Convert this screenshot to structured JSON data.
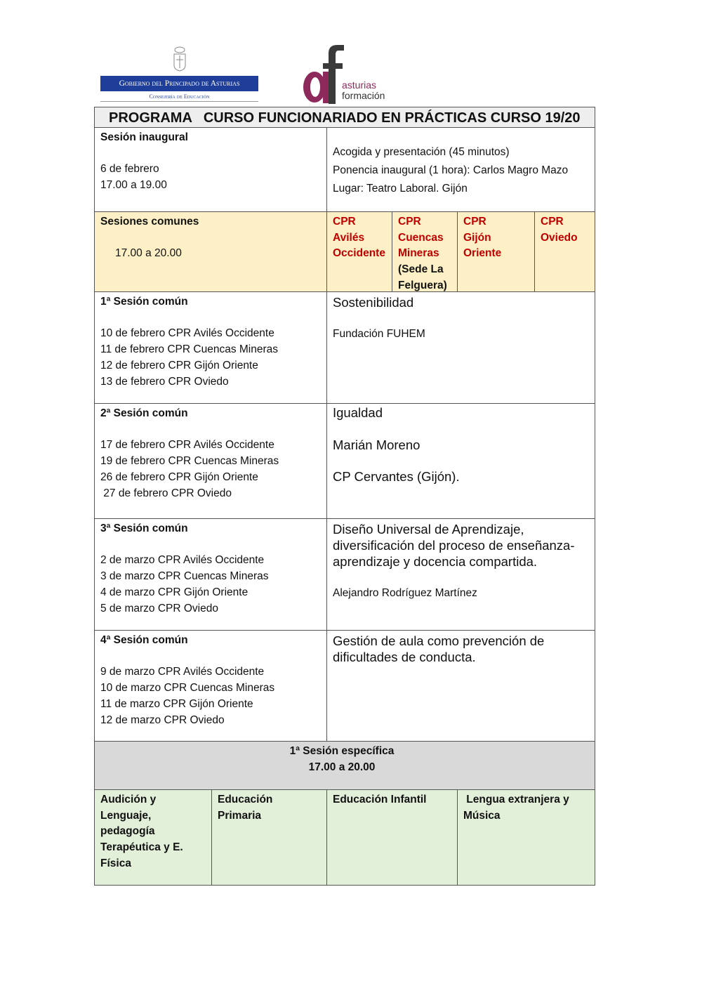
{
  "logos": {
    "gov_title": "Gobierno del Principado de Asturias",
    "gov_subtitle": "Consejería de Educación",
    "af_line1": "asturias",
    "af_line2": "formación",
    "af_color": "#8e2a5b",
    "gov_color": "#1f3e99"
  },
  "title": "PROGRAMA   CURSO FUNCIONARIADO EN PRÁCTICAS CURSO 19/20",
  "inaugural": {
    "heading": "Sesión inaugural",
    "date": "6 de febrero",
    "time": "17.00 a 19.00",
    "details": [
      "Acogida y presentación (45 minutos)",
      "Ponencia inaugural (1 hora): Carlos Magro Mazo",
      "Lugar: Teatro Laboral. Gijón"
    ]
  },
  "comunes": {
    "heading": "Sesiones comunes",
    "time": "17.00 a 20.00",
    "centers": [
      {
        "lines": [
          "CPR",
          "Avilés",
          "Occidente"
        ]
      },
      {
        "lines": [
          "CPR",
          "Cuencas",
          "Mineras"
        ],
        "note": [
          "(Sede La",
          "Felguera)"
        ]
      },
      {
        "lines": [
          "CPR",
          "Gijón",
          "Oriente"
        ]
      },
      {
        "lines": [
          "CPR",
          "Oviedo"
        ]
      }
    ]
  },
  "sessions": [
    {
      "heading": "1ª Sesión común",
      "dates": [
        "10 de febrero CPR Avilés Occidente",
        "11 de febrero CPR Cuencas Mineras",
        "12 de febrero CPR Gijón Oriente",
        "13 de febrero CPR Oviedo"
      ],
      "topic": [
        "Sostenibilidad"
      ],
      "speaker": "Fundación FUHEM",
      "place": ""
    },
    {
      "heading": "2ª Sesión común",
      "dates": [
        "17 de febrero CPR Avilés Occidente",
        "19 de febrero CPR Cuencas Mineras",
        "26 de febrero CPR Gijón Oriente",
        " 27 de febrero CPR Oviedo"
      ],
      "topic": [
        "Igualdad"
      ],
      "speaker": "Marián Moreno",
      "place": "CP Cervantes (Gijón)."
    },
    {
      "heading": "3ª Sesión común",
      "dates": [
        "2 de marzo CPR Avilés Occidente",
        "3 de marzo CPR Cuencas Mineras",
        "4 de marzo CPR Gijón Oriente",
        "5 de marzo CPR Oviedo"
      ],
      "topic": [
        "Diseño Universal de Aprendizaje,",
        "diversificación del proceso de enseñanza-",
        "aprendizaje y docencia compartida."
      ],
      "speaker": "Alejandro Rodríguez Martínez",
      "place": ""
    },
    {
      "heading": "4ª Sesión común",
      "dates": [
        "9 de marzo CPR Avilés Occidente",
        "10 de marzo CPR Cuencas Mineras",
        "11 de marzo CPR Gijón Oriente",
        "12 de marzo CPR Oviedo"
      ],
      "topic": [
        "Gestión de aula como prevención de",
        "dificultades de conducta."
      ],
      "speaker": "",
      "place": ""
    }
  ],
  "especifica": {
    "heading": "1ª Sesión específica",
    "time": "17.00 a 20.00",
    "groups": [
      [
        "Audición y",
        "Lenguaje,",
        "pedagogía",
        "Terapéutica y E.",
        "Física"
      ],
      [
        "Educación",
        "Primaria"
      ],
      [
        "Educación Infantil"
      ],
      [
        " Lengua extranjera y",
        "Música"
      ]
    ]
  },
  "colors": {
    "yellow": "#fdf0c6",
    "grey": "#d9d9d9",
    "green": "#e2efd9",
    "red": "#c00000"
  }
}
